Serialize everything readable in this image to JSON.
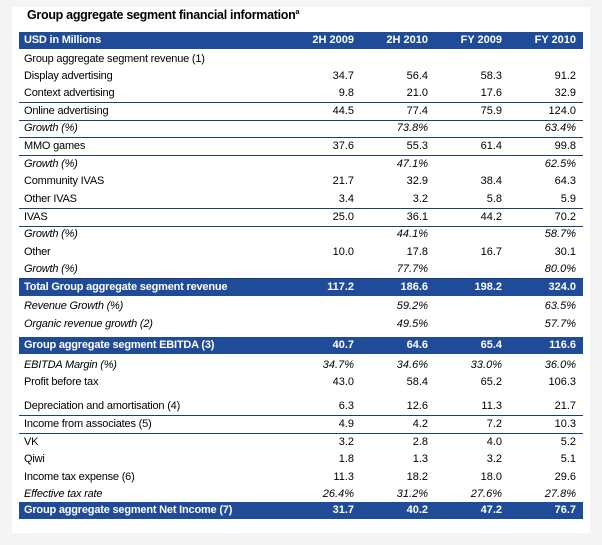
{
  "title": "Group aggregate segment financial information",
  "title_footnote": "a",
  "header": {
    "label": "USD in Millions",
    "columns": [
      "2H 2009",
      "2H 2010",
      "FY 2009",
      "FY 2010"
    ]
  },
  "rows": [
    {
      "label": "Group aggregate segment revenue (1)",
      "values": [
        "",
        "",
        "",
        ""
      ]
    },
    {
      "label": "Display advertising",
      "values": [
        "34.7",
        "56.4",
        "58.3",
        "91.2"
      ]
    },
    {
      "label": "Context advertising",
      "values": [
        "9.8",
        "21.0",
        "17.6",
        "32.9"
      ]
    },
    {
      "label": "Online advertising",
      "values": [
        "44.5",
        "77.4",
        "75.9",
        "124.0"
      ]
    },
    {
      "label": "Growth (%)",
      "values": [
        "",
        "73.8%",
        "",
        "63.4%"
      ]
    },
    {
      "label": "MMO games",
      "values": [
        "37.6",
        "55.3",
        "61.4",
        "99.8"
      ]
    },
    {
      "label": "Growth (%)",
      "values": [
        "",
        "47.1%",
        "",
        "62.5%"
      ]
    },
    {
      "label": "Community IVAS",
      "values": [
        "21.7",
        "32.9",
        "38.4",
        "64.3"
      ]
    },
    {
      "label": "Other IVAS",
      "values": [
        "3.4",
        "3.2",
        "5.8",
        "5.9"
      ]
    },
    {
      "label": "IVAS",
      "values": [
        "25.0",
        "36.1",
        "44.2",
        "70.2"
      ]
    },
    {
      "label": "Growth (%)",
      "values": [
        "",
        "44.1%",
        "",
        "58.7%"
      ]
    },
    {
      "label": "Other",
      "values": [
        "10.0",
        "17.8",
        "16.7",
        "30.1"
      ]
    },
    {
      "label": "Growth (%)",
      "values": [
        "",
        "77.7%",
        "",
        "80.0%"
      ]
    },
    {
      "label": "Total Group aggregate segment revenue",
      "values": [
        "117.2",
        "186.6",
        "198.2",
        "324.0"
      ]
    },
    {
      "label": "Revenue Growth (%)",
      "values": [
        "",
        "59.2%",
        "",
        "63.5%"
      ]
    },
    {
      "label": "Organic revenue growth (2)",
      "values": [
        "",
        "49.5%",
        "",
        "57.7%"
      ]
    },
    {
      "label": "Group aggregate segment EBITDA (3)",
      "values": [
        "40.7",
        "64.6",
        "65.4",
        "116.6"
      ]
    },
    {
      "label": "EBITDA Margin (%)",
      "values": [
        "34.7%",
        "34.6%",
        "33.0%",
        "36.0%"
      ]
    },
    {
      "label": "Profit before tax",
      "values": [
        "43.0",
        "58.4",
        "65.2",
        "106.3"
      ]
    },
    {
      "label": "Depreciation and amortisation (4)",
      "values": [
        "6.3",
        "12.6",
        "11.3",
        "21.7"
      ]
    },
    {
      "label": "Income from associates (5)",
      "values": [
        "4.9",
        "4.2",
        "7.2",
        "10.3"
      ]
    },
    {
      "label": "VK",
      "values": [
        "3.2",
        "2.8",
        "4.0",
        "5.2"
      ]
    },
    {
      "label": "Qiwi",
      "values": [
        "1.8",
        "1.3",
        "3.2",
        "5.1"
      ]
    },
    {
      "label": "Income tax expense (6)",
      "values": [
        "11.3",
        "18.2",
        "18.0",
        "29.6"
      ]
    },
    {
      "label": "Effective tax rate",
      "values": [
        "26.4%",
        "31.2%",
        "27.6%",
        "27.8%"
      ]
    },
    {
      "label": "Group aggregate segment Net Income (7)",
      "values": [
        "31.7",
        "40.2",
        "47.2",
        "76.7"
      ]
    }
  ],
  "colors": {
    "band": "#1f4b98",
    "rule": "#1f3c7a"
  }
}
